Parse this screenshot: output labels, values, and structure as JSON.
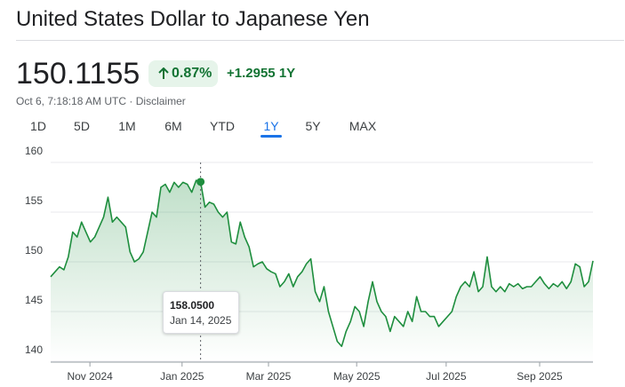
{
  "header": {
    "title": "United States Dollar to Japanese Yen",
    "price": "150.1155",
    "change_percent": "0.87%",
    "change_abs": "+1.2955",
    "period": "1Y",
    "timestamp": "Oct 6, 7:18:18 AM UTC",
    "separator": "·",
    "disclaimer": "Disclaimer"
  },
  "tabs": [
    "1D",
    "5D",
    "1M",
    "6M",
    "YTD",
    "1Y",
    "5Y",
    "MAX"
  ],
  "selected_tab": "1Y",
  "chart_data": {
    "type": "line",
    "color": "#1e8e3e",
    "values": [
      148.5,
      149,
      149.5,
      149.2,
      150.5,
      153,
      152.5,
      154,
      153,
      152,
      152.5,
      153.5,
      154.5,
      156.5,
      154,
      154.5,
      154,
      153.5,
      151,
      150,
      150.3,
      151,
      153,
      155,
      154.5,
      157.5,
      157.8,
      157,
      158,
      157.5,
      158,
      157.8,
      157,
      158.2,
      158.05,
      155.5,
      156,
      155.8,
      155,
      154.5,
      155,
      152,
      151.8,
      154,
      152.5,
      151.5,
      149.5,
      149.8,
      150,
      149.3,
      149,
      148.8,
      147.5,
      148,
      148.8,
      147.5,
      148.5,
      149,
      149.8,
      150.3,
      147,
      146,
      147.5,
      145,
      143.5,
      142,
      141.5,
      143,
      144,
      145.5,
      145,
      143.5,
      146,
      148,
      146,
      145,
      144.5,
      143,
      144.5,
      144,
      143.5,
      145,
      144,
      146.5,
      145,
      145,
      144.5,
      144.5,
      143.5,
      144,
      144.5,
      145,
      146.5,
      147.5,
      148,
      147.5,
      149,
      147,
      147.5,
      150.5,
      147.5,
      147,
      147.5,
      147,
      147.8,
      147.5,
      147.8,
      147.3,
      147.5,
      147.5,
      148,
      148.5,
      147.8,
      147.3,
      147.8,
      147.5,
      148,
      147.3,
      148,
      149.8,
      149.5,
      147.5,
      148,
      150.1
    ],
    "xlim": [
      0,
      123
    ],
    "xticks": [
      {
        "value": 8.9,
        "label": "Nov 2024"
      },
      {
        "value": 29.8,
        "label": "Jan 2025"
      },
      {
        "value": 49.4,
        "label": "Mar 2025"
      },
      {
        "value": 69.4,
        "label": "May 2025"
      },
      {
        "value": 89.7,
        "label": "Jul 2025"
      },
      {
        "value": 110.9,
        "label": "Sep 2025"
      }
    ],
    "ylim": [
      140,
      160
    ],
    "yticks": [
      140,
      145,
      150,
      155,
      160
    ],
    "grid": true,
    "tooltip": {
      "value": 158.05,
      "label": "158.0500",
      "date": "Jan 14, 2025"
    }
  }
}
